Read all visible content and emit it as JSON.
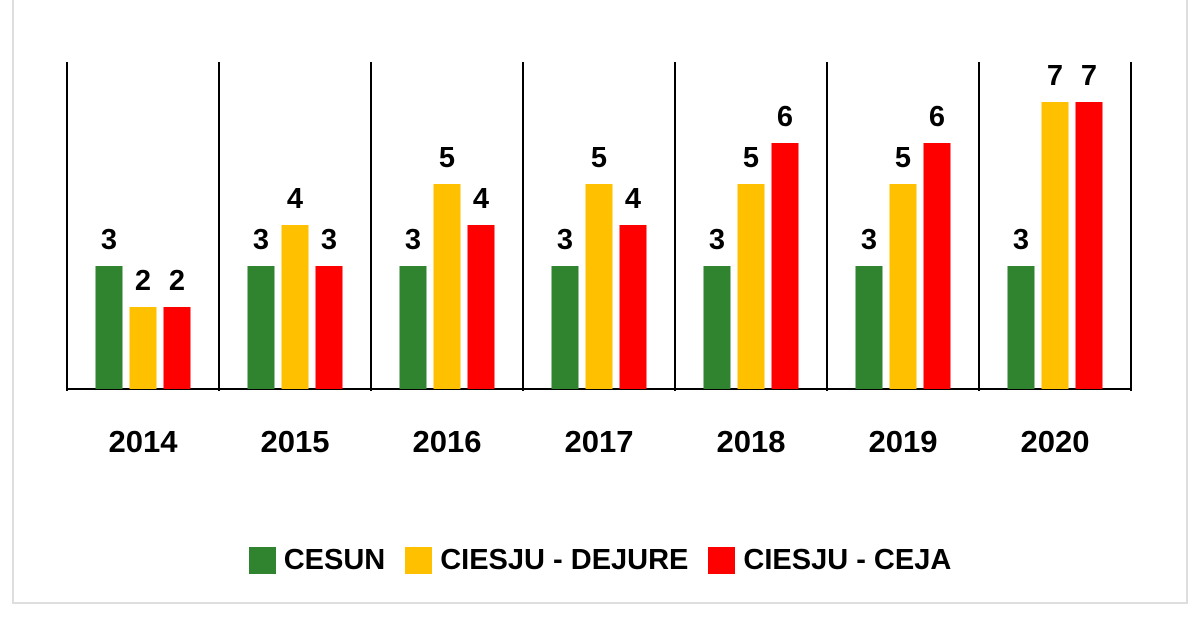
{
  "chart_data": {
    "type": "bar",
    "title": "",
    "xlabel": "",
    "ylabel": "",
    "categories": [
      "2014",
      "2015",
      "2016",
      "2017",
      "2018",
      "2019",
      "2020"
    ],
    "series": [
      {
        "name": "CESUN",
        "color": "#31842f",
        "values": [
          3,
          3,
          3,
          3,
          3,
          3,
          3
        ]
      },
      {
        "name": "CIESJU - DEJURE",
        "color": "#ffc000",
        "values": [
          2,
          4,
          5,
          5,
          5,
          5,
          7
        ]
      },
      {
        "name": "CIESJU - CEJA",
        "color": "#ff0000",
        "values": [
          2,
          3,
          4,
          4,
          6,
          6,
          7
        ]
      }
    ],
    "ylim": [
      0,
      7
    ],
    "grid": false,
    "data_labels": true,
    "category_separators": true,
    "legend_position": "bottom"
  }
}
